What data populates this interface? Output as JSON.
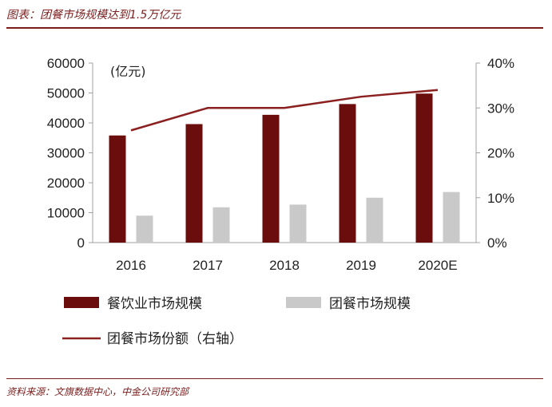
{
  "figure": {
    "title": "图表：团餐市场规模达到1.5万亿元",
    "source": "资料来源：文旗数据中心，中金公司研究部"
  },
  "chart_data": {
    "type": "bar",
    "categories": [
      "2016",
      "2017",
      "2018",
      "2019",
      "2020E"
    ],
    "unit_label": "(亿元)",
    "series": [
      {
        "name": "餐饮业市场规模",
        "kind": "bar",
        "axis": "left",
        "color": "#6b0d0d",
        "values": [
          35800,
          39600,
          42700,
          46300,
          49800
        ]
      },
      {
        "name": "团餐市场规模",
        "kind": "bar",
        "axis": "left",
        "color": "#c9c9c9",
        "values": [
          9000,
          11800,
          12700,
          15000,
          16900
        ]
      },
      {
        "name": "团餐市场份额（右轴）",
        "kind": "line",
        "axis": "right",
        "color": "#8b2020",
        "values": [
          25.0,
          30.0,
          30.0,
          32.5,
          34.0
        ]
      }
    ],
    "y_left": {
      "min": 0,
      "max": 60000,
      "ticks": [
        "0",
        "10000",
        "20000",
        "30000",
        "40000",
        "50000",
        "60000"
      ]
    },
    "y_right": {
      "min": 0,
      "max": 40,
      "ticks": [
        "0%",
        "10%",
        "20%",
        "30%",
        "40%"
      ]
    },
    "grid": false,
    "legend_position": "bottom"
  }
}
